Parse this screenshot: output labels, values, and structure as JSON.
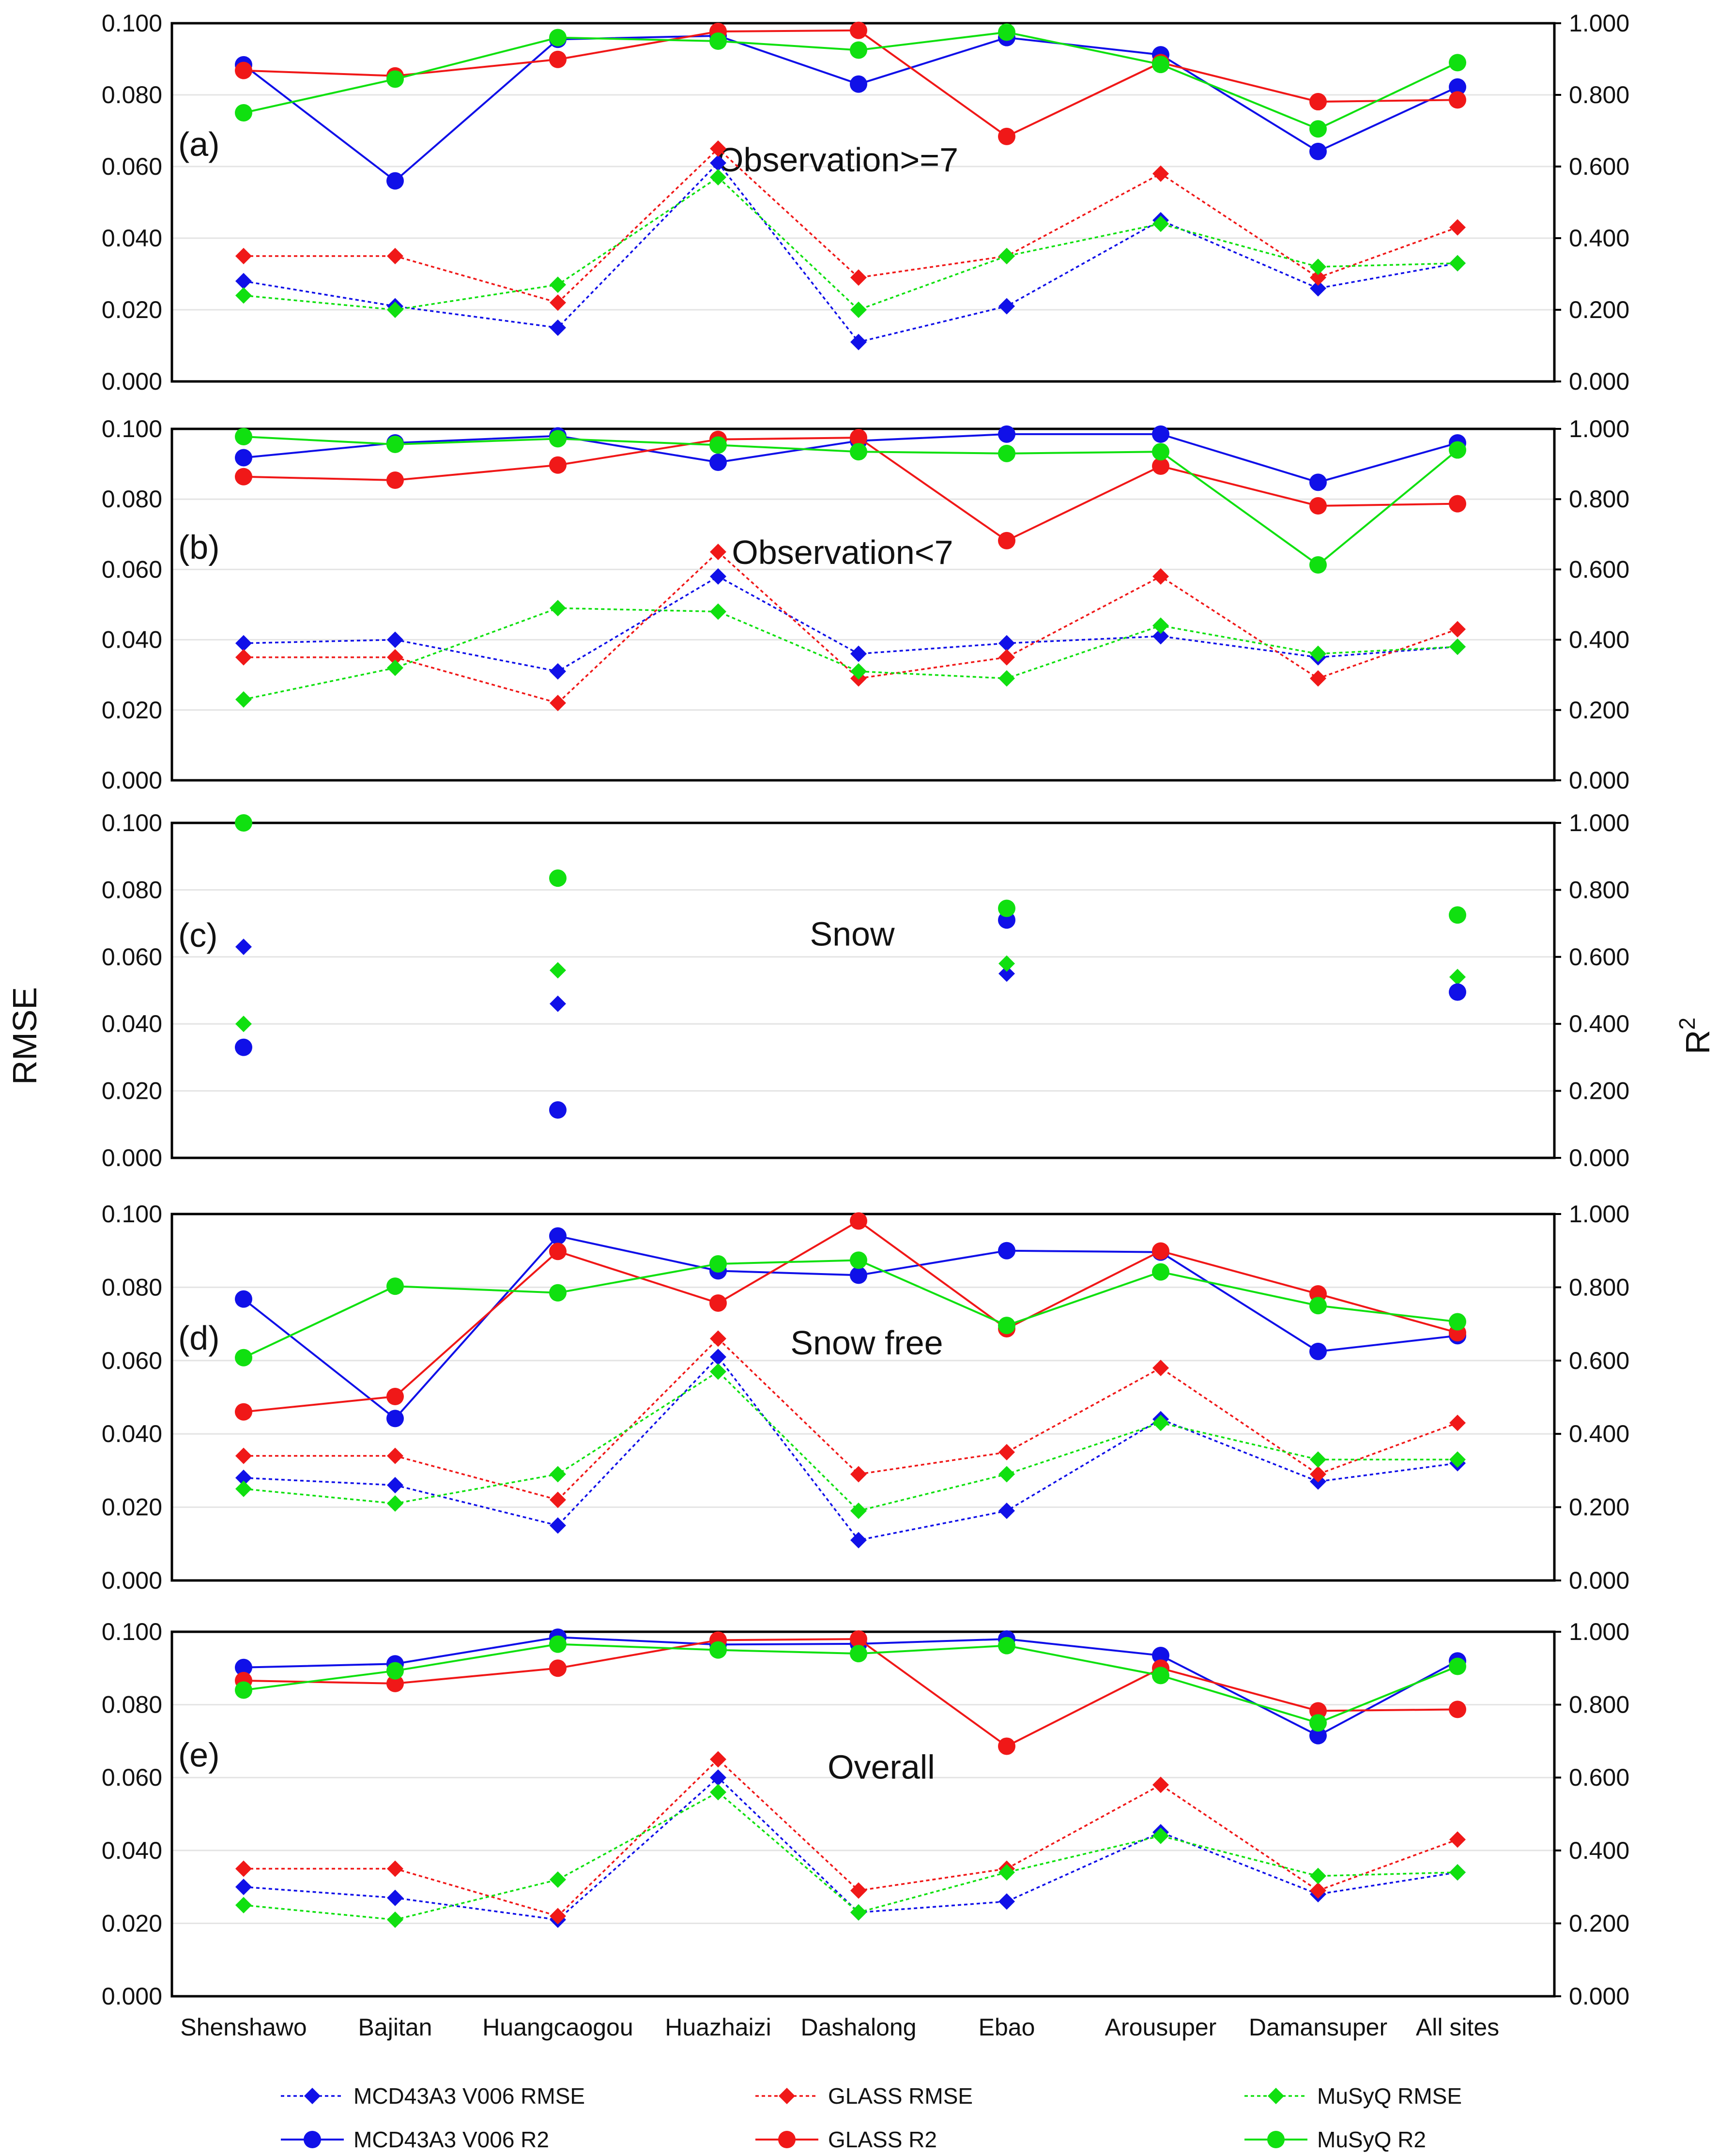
{
  "chart_data": {
    "type": "line",
    "ylabel_left": "RMSE",
    "ylabel_right": "R",
    "ylabel_right_sup": "2",
    "ylim_left": [
      0,
      0.1
    ],
    "ylim_right": [
      0,
      1.0
    ],
    "yticks_left": [
      "0.000",
      "0.020",
      "0.040",
      "0.060",
      "0.080",
      "0.100"
    ],
    "yticks_right": [
      "0.000",
      "0.200",
      "0.400",
      "0.600",
      "0.800",
      "1.000"
    ],
    "categories": [
      "Shenshawo",
      "Bajitan",
      "Huangcaogou",
      "Huazhaizi",
      "Dashalong",
      "Ebao",
      "Arousuper",
      "Damansuper",
      "All sites"
    ],
    "legend": {
      "rmse_mcd": "MCD43A3 V006 RMSE",
      "rmse_glass": "GLASS RMSE",
      "rmse_musyq": "MuSyQ RMSE",
      "r2_mcd": "MCD43A3 V006 R2",
      "r2_glass": "GLASS R2",
      "r2_musyq": "MuSyQ R2"
    },
    "colors": {
      "mcd": "#1010e8",
      "glass": "#f01818",
      "musyq": "#10e010"
    },
    "panels": [
      {
        "label": "(a)",
        "title": "Observation>=7",
        "rmse": {
          "mcd": [
            0.028,
            0.021,
            0.015,
            0.061,
            0.011,
            0.021,
            0.045,
            0.026,
            0.033
          ],
          "glass": [
            0.035,
            0.035,
            0.022,
            0.065,
            0.029,
            0.035,
            0.058,
            0.029,
            0.043
          ],
          "musyq": [
            0.024,
            0.02,
            0.027,
            0.057,
            0.02,
            0.035,
            0.044,
            0.032,
            0.033
          ]
        },
        "r2": {
          "mcd": [
            0.884,
            0.56,
            0.955,
            0.965,
            0.83,
            0.96,
            0.912,
            0.642,
            0.822
          ],
          "glass": [
            0.868,
            0.853,
            0.899,
            0.977,
            0.98,
            0.684,
            0.89,
            0.781,
            0.786
          ],
          "musyq": [
            0.75,
            0.844,
            0.96,
            0.95,
            0.925,
            0.975,
            0.885,
            0.705,
            0.89
          ]
        }
      },
      {
        "label": "(b)",
        "title": "Observation<7",
        "rmse": {
          "mcd": [
            0.039,
            0.04,
            0.031,
            0.058,
            0.036,
            0.039,
            0.041,
            0.035,
            0.038
          ],
          "glass": [
            0.035,
            0.035,
            0.022,
            0.065,
            0.029,
            0.035,
            0.058,
            0.029,
            0.043
          ],
          "musyq": [
            0.023,
            0.032,
            0.049,
            0.048,
            0.031,
            0.029,
            0.044,
            0.036,
            0.038
          ]
        },
        "r2": {
          "mcd": [
            0.918,
            0.96,
            0.98,
            0.905,
            0.966,
            0.985,
            0.985,
            0.848,
            0.96
          ],
          "glass": [
            0.864,
            0.854,
            0.897,
            0.97,
            0.975,
            0.682,
            0.894,
            0.781,
            0.787
          ],
          "musyq": [
            0.978,
            0.956,
            0.972,
            0.954,
            0.935,
            0.93,
            0.935,
            0.613,
            0.94
          ]
        }
      },
      {
        "label": "(c)",
        "title": "Snow",
        "rmse": {
          "mcd": [
            0.063,
            null,
            0.046,
            null,
            null,
            0.055,
            null,
            null,
            null
          ],
          "glass": [
            null,
            null,
            null,
            null,
            null,
            null,
            null,
            null,
            null
          ],
          "musyq": [
            0.04,
            null,
            0.056,
            null,
            null,
            0.058,
            null,
            null,
            0.054
          ]
        },
        "r2": {
          "mcd": [
            0.33,
            null,
            0.143,
            null,
            null,
            0.71,
            null,
            null,
            0.495
          ],
          "glass": [
            null,
            null,
            null,
            null,
            null,
            null,
            null,
            null,
            null
          ],
          "musyq": [
            1.0,
            null,
            0.835,
            null,
            null,
            0.745,
            null,
            null,
            0.725
          ]
        },
        "scatter_only": true
      },
      {
        "label": "(d)",
        "title": "Snow free",
        "rmse": {
          "mcd": [
            0.028,
            0.026,
            0.015,
            0.061,
            0.011,
            0.019,
            0.044,
            0.027,
            0.032
          ],
          "glass": [
            0.034,
            0.034,
            0.022,
            0.066,
            0.029,
            0.035,
            0.058,
            0.029,
            0.043
          ],
          "musyq": [
            0.025,
            0.021,
            0.029,
            0.057,
            0.019,
            0.029,
            0.043,
            0.033,
            0.033
          ]
        },
        "r2": {
          "mcd": [
            0.768,
            0.442,
            0.94,
            0.845,
            0.833,
            0.9,
            0.896,
            0.625,
            0.668
          ],
          "glass": [
            0.46,
            0.502,
            0.898,
            0.757,
            0.981,
            0.687,
            0.899,
            0.782,
            0.676
          ],
          "musyq": [
            0.608,
            0.803,
            0.785,
            0.864,
            0.874,
            0.696,
            0.842,
            0.75,
            0.706
          ]
        }
      },
      {
        "label": "(e)",
        "title": "Overall",
        "rmse": {
          "mcd": [
            0.03,
            0.027,
            0.021,
            0.06,
            0.023,
            0.026,
            0.045,
            0.028,
            0.034
          ],
          "glass": [
            0.035,
            0.035,
            0.022,
            0.065,
            0.029,
            0.035,
            0.058,
            0.029,
            0.043
          ],
          "musyq": [
            0.025,
            0.021,
            0.032,
            0.056,
            0.023,
            0.034,
            0.044,
            0.033,
            0.034
          ]
        },
        "r2": {
          "mcd": [
            0.902,
            0.912,
            0.985,
            0.965,
            0.967,
            0.98,
            0.935,
            0.715,
            0.92
          ],
          "glass": [
            0.866,
            0.858,
            0.9,
            0.977,
            0.98,
            0.686,
            0.9,
            0.783,
            0.787
          ],
          "musyq": [
            0.84,
            0.893,
            0.966,
            0.95,
            0.94,
            0.962,
            0.88,
            0.75,
            0.905
          ]
        }
      }
    ]
  }
}
